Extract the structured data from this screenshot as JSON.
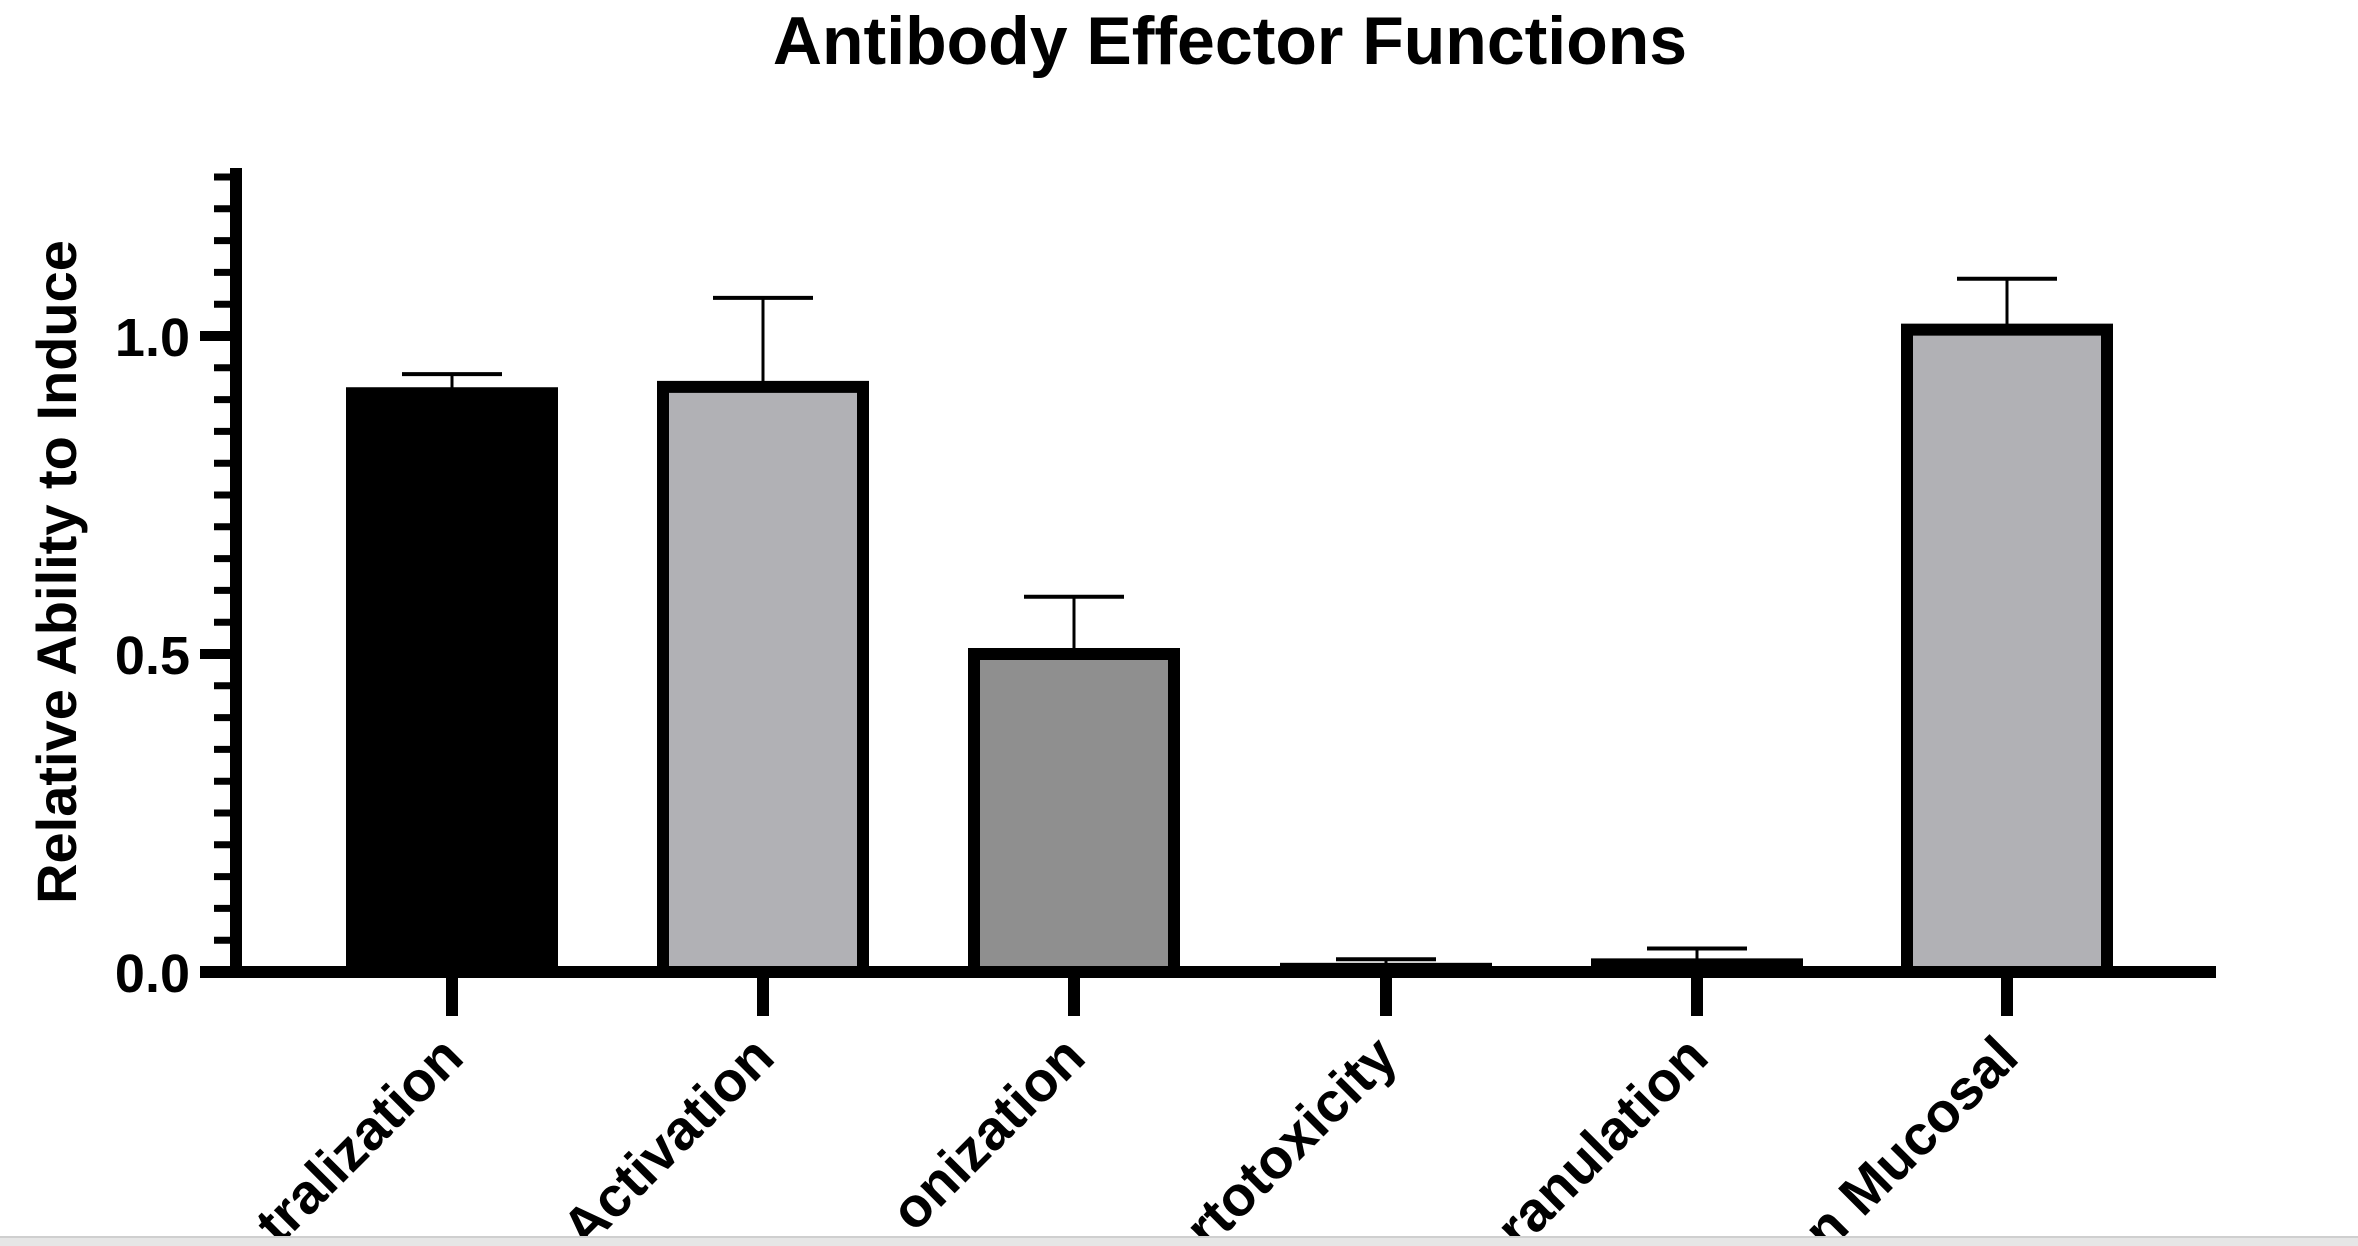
{
  "chart_data": {
    "type": "bar",
    "title": "Antibody Effector Functions",
    "xlabel": "",
    "ylabel": "Relative Ability to Induce",
    "ylim": [
      0,
      1.25
    ],
    "yticks": [
      0.0,
      0.5,
      1.0
    ],
    "ytick_labels": [
      "0.0",
      "0.5",
      "1.0"
    ],
    "minor_tick_step": 0.05,
    "grid": false,
    "legend": "none",
    "categories": [
      "tralization",
      "Activation",
      "onization",
      "rtotoxicity",
      "ranulation",
      "n Mucosal"
    ],
    "values": [
      0.91,
      0.92,
      0.5,
      0.005,
      0.012,
      1.01
    ],
    "errors": [
      0.03,
      0.14,
      0.09,
      0.015,
      0.025,
      0.08
    ],
    "bar_colors": [
      "#000000",
      "#b1b1b5",
      "#8f8f8f",
      "#8f8f8f",
      "#8f8f8f",
      "#b1b1b5"
    ],
    "edge_color": "#000000"
  }
}
